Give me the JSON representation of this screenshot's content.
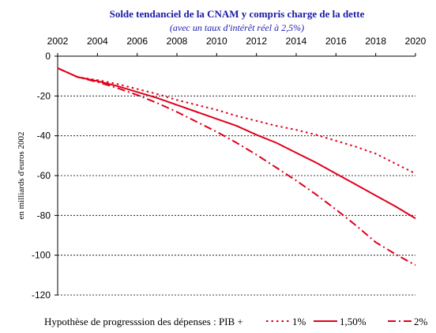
{
  "chart_data": {
    "type": "line",
    "title": "Solde tendanciel de la CNAM y compris charge de la dette",
    "subtitle": "(avec un taux d'intérêt réel à 2,5%)",
    "xlabel": "",
    "ylabel": "en milliards d'euros 2002",
    "x_ticks": [
      "2002",
      "2004",
      "2006",
      "2008",
      "2010",
      "2012",
      "2014",
      "2016",
      "2018",
      "2020"
    ],
    "y_ticks": [
      "0",
      "-20",
      "-40",
      "-60",
      "-80",
      "-100",
      "-120"
    ],
    "xlim": [
      2002,
      2020
    ],
    "ylim": [
      -120,
      0
    ],
    "grid": "horizontal dashed",
    "legend_title": "Hypothèse de progresssion des dépenses : PIB +",
    "legend_position": "bottom",
    "x": [
      2002,
      2003,
      2004,
      2005,
      2006,
      2007,
      2008,
      2009,
      2010,
      2011,
      2012,
      2013,
      2014,
      2015,
      2016,
      2017,
      2018,
      2019,
      2020
    ],
    "series": [
      {
        "name": "1%",
        "style": "dotted",
        "color": "#e0001b",
        "values": [
          -6,
          -10.5,
          -12,
          -14,
          -16.5,
          -19,
          -22,
          -24.5,
          -27,
          -30,
          -32.5,
          -35,
          -37,
          -39.5,
          -42.5,
          -45.5,
          -49,
          -54,
          -59
        ]
      },
      {
        "name": "1,50%",
        "style": "solid",
        "color": "#e0001b",
        "values": [
          -6,
          -10.5,
          -12.5,
          -15,
          -18,
          -21,
          -24.5,
          -28,
          -31.5,
          -35,
          -39.5,
          -43.5,
          -48.5,
          -53.5,
          -59,
          -64.5,
          -70,
          -75.5,
          -81.5
        ]
      },
      {
        "name": "2%",
        "style": "dash-dot",
        "color": "#e0001b",
        "values": [
          -6,
          -10.5,
          -13,
          -16,
          -19.5,
          -23.5,
          -28,
          -33,
          -38,
          -43.5,
          -49.5,
          -56,
          -62.5,
          -69.5,
          -77,
          -85,
          -93.5,
          -99.5,
          -105
        ]
      }
    ]
  }
}
